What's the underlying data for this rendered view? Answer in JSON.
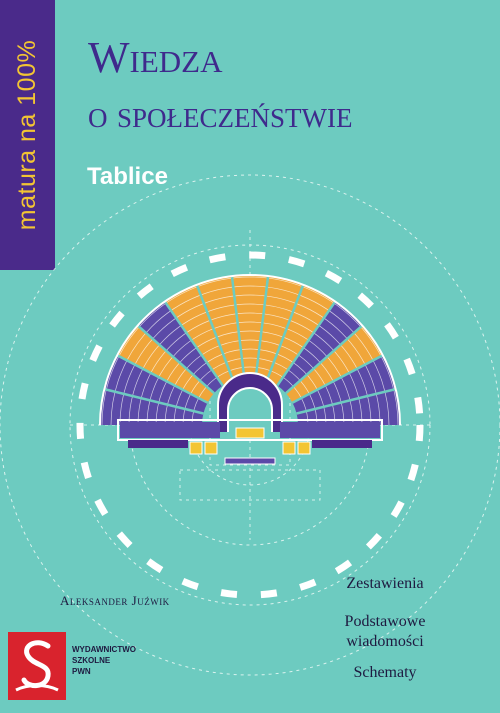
{
  "series": "matura na 100%",
  "title": {
    "line1": "Wiedza",
    "line2": "o społeczeństwie"
  },
  "subtitle": "Tablice",
  "author": "Aleksander Juźwik",
  "categories": [
    "Zestawienia",
    "Podstawowe",
    "wiadomości",
    "Schematy"
  ],
  "publisher": {
    "line1": "WYDAWNICTWO",
    "line2": "SZKOLNE",
    "line3": "PWN"
  },
  "colors": {
    "background": "#6dcbc0",
    "series_band": "#4a2a8a",
    "series_text": "#f3c533",
    "title": "#3f2a8c",
    "seats_purple": "#5b4aa8",
    "seats_orange": "#f0a63a",
    "logo_red": "#d9232d"
  },
  "icons": [
    "parliament-chamber-illustration",
    "publisher-logo-icon"
  ]
}
